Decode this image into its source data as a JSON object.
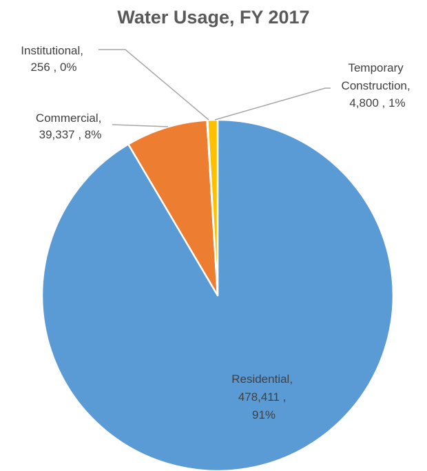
{
  "chart_data": {
    "type": "pie",
    "title": "Water Usage, FY 2017",
    "slices": [
      {
        "category": "Residential",
        "value": 478411,
        "value_label": "478,411",
        "percent_label": "91%",
        "color": "#5b9bd5"
      },
      {
        "category": "Commercial",
        "value": 39337,
        "value_label": "39,337",
        "percent_label": "8%",
        "color": "#ed7d31"
      },
      {
        "category": "Institutional",
        "value": 256,
        "value_label": "256",
        "percent_label": "0%",
        "color": "#a5a5a5"
      },
      {
        "category": "Temporary Construction",
        "value": 4800,
        "value_label": "4,800",
        "percent_label": "1%",
        "color": "#ffc000"
      }
    ],
    "start_angle_deg": 0,
    "direction": "clockwise",
    "legend": "none"
  },
  "labels": {
    "residential": {
      "line1": "Residential,",
      "line2": "478,411 ,",
      "line3": "91%"
    },
    "commercial": {
      "line1": "Commercial,",
      "line2": "39,337 , 8%"
    },
    "institutional": {
      "line1": "Institutional,",
      "line2": "256 , 0%"
    },
    "temporary": {
      "line1": "Temporary",
      "line2": "Construction,",
      "line3": "4,800 , 1%"
    }
  }
}
